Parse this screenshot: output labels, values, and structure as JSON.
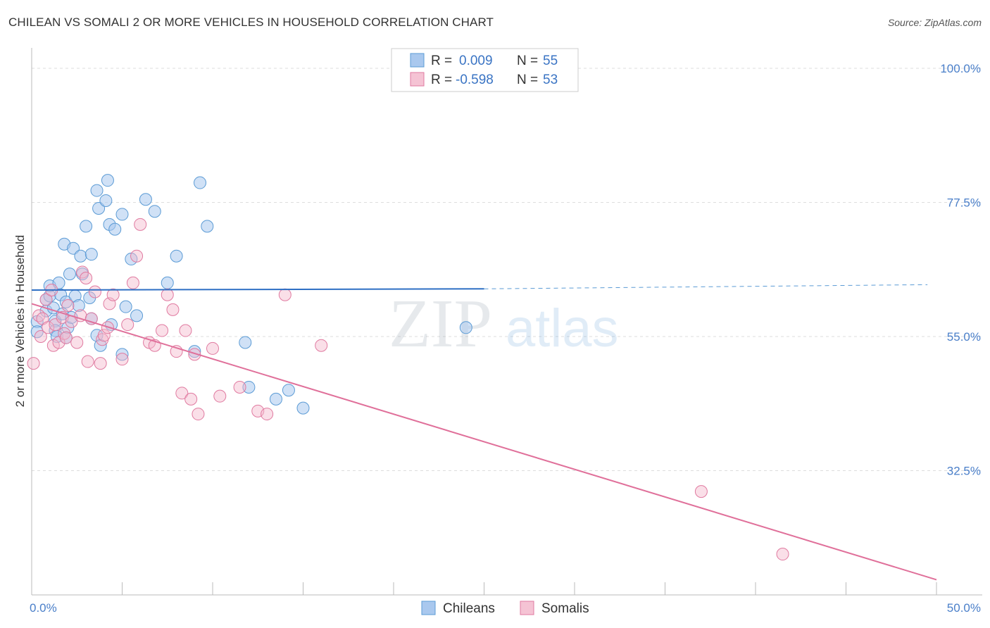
{
  "title": "CHILEAN VS SOMALI 2 OR MORE VEHICLES IN HOUSEHOLD CORRELATION CHART",
  "source": "Source: ZipAtlas.com",
  "watermark": {
    "zip": "ZIP",
    "atlas": "atlas"
  },
  "colors": {
    "blue": "#5b9bd5",
    "blue_fill": "#a9c8ee",
    "pink": "#e07aa0",
    "pink_fill": "#f5b8cc",
    "axis_text": "#4a7fc9"
  },
  "legend": {
    "rows": [
      {
        "r_label": "R = ",
        "r_value": "0.009",
        "n_label": "N = ",
        "n_value": "55"
      },
      {
        "r_label": "R = ",
        "r_value": "-0.598",
        "n_label": "N = ",
        "n_value": "53"
      }
    ]
  },
  "bottom_legend": [
    "Chileans",
    "Somalis"
  ],
  "chart_data": {
    "type": "scatter",
    "title": "CHILEAN VS SOMALI 2 OR MORE VEHICLES IN HOUSEHOLD CORRELATION CHART",
    "xlabel": "",
    "ylabel": "2 or more Vehicles in Household",
    "xlim": [
      0,
      50
    ],
    "ylim": [
      10,
      102
    ],
    "x_tick_labels": [
      {
        "value": 0,
        "label": "0.0%"
      },
      {
        "value": 50,
        "label": "50.0%"
      }
    ],
    "y_tick_labels": [
      {
        "value": 100,
        "label": "100.0%"
      },
      {
        "value": 77.5,
        "label": "77.5%"
      },
      {
        "value": 55,
        "label": "55.0%"
      },
      {
        "value": 32.5,
        "label": "32.5%"
      }
    ],
    "grid": true,
    "series": [
      {
        "name": "Chileans",
        "color": "#5b9bd5",
        "r": 0.009,
        "n": 55,
        "trend": {
          "x": [
            0,
            25,
            49.5
          ],
          "y": [
            62.8,
            63.0,
            63.7
          ],
          "dashed_from_x": 25
        },
        "points": [
          [
            0.3,
            57.5
          ],
          [
            0.3,
            55.8
          ],
          [
            0.8,
            59.3
          ],
          [
            0.8,
            61.2
          ],
          [
            1.0,
            61.8
          ],
          [
            1.0,
            63.5
          ],
          [
            1.2,
            59.8
          ],
          [
            1.3,
            57.6
          ],
          [
            1.3,
            56.0
          ],
          [
            1.4,
            55.0
          ],
          [
            1.5,
            64.0
          ],
          [
            1.6,
            62.0
          ],
          [
            1.7,
            58.8
          ],
          [
            1.8,
            70.5
          ],
          [
            1.9,
            60.8
          ],
          [
            1.9,
            54.8
          ],
          [
            2.0,
            56.5
          ],
          [
            2.1,
            65.5
          ],
          [
            2.2,
            58.2
          ],
          [
            2.3,
            69.8
          ],
          [
            2.4,
            61.8
          ],
          [
            2.6,
            60.2
          ],
          [
            2.7,
            68.5
          ],
          [
            2.8,
            65.5
          ],
          [
            3.0,
            73.5
          ],
          [
            3.2,
            61.5
          ],
          [
            3.3,
            68.8
          ],
          [
            3.3,
            58.0
          ],
          [
            3.6,
            79.5
          ],
          [
            3.6,
            55.2
          ],
          [
            3.7,
            76.5
          ],
          [
            3.8,
            53.5
          ],
          [
            4.1,
            77.8
          ],
          [
            4.2,
            81.2
          ],
          [
            4.3,
            73.8
          ],
          [
            4.4,
            57.0
          ],
          [
            4.6,
            73.0
          ],
          [
            5.0,
            75.5
          ],
          [
            5.2,
            60.0
          ],
          [
            5.5,
            68.0
          ],
          [
            5.8,
            58.5
          ],
          [
            6.3,
            78.0
          ],
          [
            6.8,
            76.0
          ],
          [
            7.5,
            64.0
          ],
          [
            8.0,
            68.5
          ],
          [
            9.0,
            52.5
          ],
          [
            9.3,
            80.8
          ],
          [
            9.7,
            73.5
          ],
          [
            11.8,
            54.0
          ],
          [
            12.0,
            46.5
          ],
          [
            13.5,
            44.5
          ],
          [
            14.2,
            46.0
          ],
          [
            15.0,
            43.0
          ],
          [
            24.0,
            56.5
          ],
          [
            5.0,
            52.0
          ]
        ]
      },
      {
        "name": "Somalis",
        "color": "#e07aa0",
        "r": -0.598,
        "n": 53,
        "trend": {
          "x": [
            0,
            50
          ],
          "y": [
            60.5,
            14.2
          ],
          "dashed_from_x": null
        },
        "points": [
          [
            0.1,
            50.5
          ],
          [
            0.4,
            58.5
          ],
          [
            0.5,
            55.0
          ],
          [
            0.6,
            58.0
          ],
          [
            0.8,
            61.2
          ],
          [
            0.9,
            56.5
          ],
          [
            1.1,
            62.8
          ],
          [
            1.2,
            53.5
          ],
          [
            1.3,
            57.0
          ],
          [
            1.5,
            54.0
          ],
          [
            1.7,
            58.2
          ],
          [
            1.8,
            55.5
          ],
          [
            1.9,
            54.8
          ],
          [
            2.0,
            60.2
          ],
          [
            2.2,
            57.5
          ],
          [
            2.5,
            54.0
          ],
          [
            2.7,
            58.5
          ],
          [
            2.8,
            65.8
          ],
          [
            3.0,
            64.8
          ],
          [
            3.1,
            50.8
          ],
          [
            3.3,
            58.0
          ],
          [
            3.5,
            62.5
          ],
          [
            3.8,
            50.5
          ],
          [
            3.9,
            54.5
          ],
          [
            4.0,
            55.2
          ],
          [
            4.2,
            56.5
          ],
          [
            4.3,
            60.5
          ],
          [
            4.5,
            62.0
          ],
          [
            5.0,
            51.2
          ],
          [
            5.3,
            57.0
          ],
          [
            5.6,
            64.0
          ],
          [
            5.8,
            68.5
          ],
          [
            6.0,
            73.8
          ],
          [
            6.5,
            54.0
          ],
          [
            6.8,
            53.5
          ],
          [
            7.2,
            56.0
          ],
          [
            7.5,
            62.0
          ],
          [
            7.8,
            59.5
          ],
          [
            8.0,
            52.5
          ],
          [
            8.3,
            45.5
          ],
          [
            8.5,
            56.0
          ],
          [
            8.8,
            44.5
          ],
          [
            9.0,
            52.0
          ],
          [
            9.2,
            42.0
          ],
          [
            10.0,
            53.0
          ],
          [
            10.4,
            45.0
          ],
          [
            11.5,
            46.5
          ],
          [
            12.5,
            42.5
          ],
          [
            13.0,
            42.0
          ],
          [
            14.0,
            62.0
          ],
          [
            16.0,
            53.5
          ],
          [
            37.0,
            29.0
          ],
          [
            41.5,
            18.5
          ]
        ]
      }
    ]
  }
}
